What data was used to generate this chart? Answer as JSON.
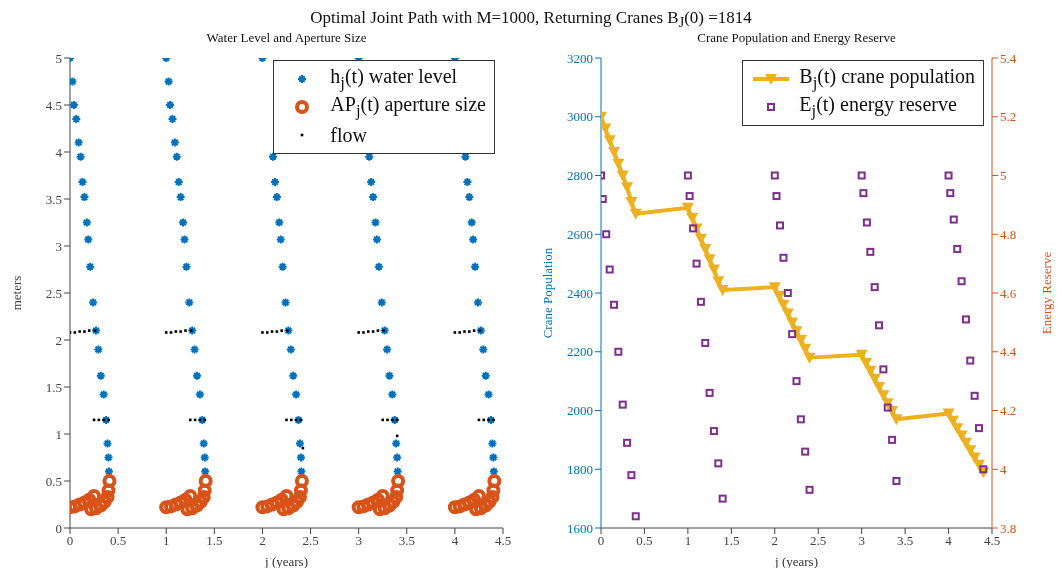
{
  "chart_data": [
    {
      "type": "scatter",
      "title": "Water Level and Aperture Size",
      "annotations": [
        "Optimal Joint Path with M=1000, Returning Cranes B$_{J}$(0) =1814"
      ],
      "xlabel": "j (years)",
      "ylabel": "meters",
      "xlim": [
        0,
        4.5
      ],
      "xticks": [
        0,
        0.5,
        1,
        1.5,
        2,
        2.5,
        3,
        3.5,
        4,
        4.5
      ],
      "ylim": [
        0,
        5
      ],
      "yticks": [
        0,
        0.5,
        1,
        1.5,
        2,
        2.5,
        3,
        3.5,
        4,
        4.5,
        5
      ],
      "legend": "top right",
      "series": [
        {
          "name": "h$_{j}$(t) water level",
          "color": "#0072bd",
          "marker": "cross",
          "x": [
            0,
            0.025,
            0.04,
            0.065,
            0.09,
            0.11,
            0.13,
            0.15,
            0.175,
            0.19,
            0.21,
            0.24,
            0.27,
            0.295,
            0.32,
            0.35,
            0.375,
            0.39,
            0.4,
            0.405,
            1,
            1.025,
            1.04,
            1.065,
            1.09,
            1.11,
            1.13,
            1.15,
            1.175,
            1.19,
            1.21,
            1.24,
            1.27,
            1.295,
            1.32,
            1.35,
            1.375,
            1.39,
            1.4,
            1.405,
            2,
            2.025,
            2.04,
            2.065,
            2.09,
            2.11,
            2.13,
            2.15,
            2.175,
            2.19,
            2.21,
            2.24,
            2.27,
            2.295,
            2.32,
            2.35,
            2.375,
            2.39,
            2.4,
            2.405,
            3,
            3.025,
            3.04,
            3.065,
            3.09,
            3.11,
            3.13,
            3.15,
            3.175,
            3.19,
            3.21,
            3.24,
            3.27,
            3.295,
            3.32,
            3.35,
            3.375,
            3.39,
            3.4,
            3.405,
            4,
            4.025,
            4.04,
            4.065,
            4.09,
            4.11,
            4.13,
            4.15,
            4.175,
            4.19,
            4.21,
            4.24,
            4.27,
            4.295,
            4.32,
            4.35,
            4.375,
            4.39,
            4.4,
            4.405
          ],
          "values": [
            5,
            4.75,
            4.5,
            4.35,
            4.1,
            3.95,
            3.68,
            3.52,
            3.25,
            3.07,
            2.78,
            2.4,
            2.1,
            1.9,
            1.62,
            1.42,
            1.15,
            0.9,
            0.75,
            0.6,
            5,
            4.75,
            4.5,
            4.35,
            4.1,
            3.95,
            3.68,
            3.52,
            3.25,
            3.07,
            2.78,
            2.4,
            2.1,
            1.9,
            1.62,
            1.42,
            1.15,
            0.9,
            0.75,
            0.6,
            5,
            null,
            null,
            null,
            null,
            3.95,
            3.68,
            3.52,
            3.25,
            3.07,
            2.78,
            2.4,
            2.1,
            1.9,
            1.62,
            1.42,
            1.15,
            0.9,
            0.75,
            0.6,
            5,
            null,
            null,
            null,
            null,
            3.95,
            3.68,
            3.52,
            3.25,
            3.07,
            2.78,
            2.4,
            2.1,
            1.9,
            1.62,
            1.42,
            1.15,
            0.9,
            0.75,
            0.6,
            5,
            null,
            null,
            null,
            null,
            3.95,
            3.68,
            3.52,
            3.25,
            3.07,
            2.78,
            2.4,
            2.1,
            1.9,
            1.62,
            1.42,
            1.15,
            0.9,
            0.75,
            0.6
          ]
        },
        {
          "name": "AP$_{j}$(t) aperture size",
          "color": "#d95319",
          "marker": "circle",
          "x": [
            0,
            0.05,
            0.1,
            0.15,
            0.2,
            0.25,
            0.22,
            0.27,
            0.32,
            0.36,
            0.39,
            0.4,
            0.41,
            1,
            1.05,
            1.1,
            1.15,
            1.2,
            1.25,
            1.22,
            1.27,
            1.32,
            1.36,
            1.39,
            1.4,
            1.41,
            2,
            2.05,
            2.1,
            2.15,
            2.2,
            2.25,
            2.22,
            2.27,
            2.32,
            2.36,
            2.39,
            2.4,
            2.41,
            3,
            3.05,
            3.1,
            3.15,
            3.2,
            3.25,
            3.22,
            3.27,
            3.32,
            3.36,
            3.39,
            3.4,
            3.41,
            4,
            4.05,
            4.1,
            4.15,
            4.2,
            4.25,
            4.22,
            4.27,
            4.32,
            4.36,
            4.39,
            4.4,
            4.41
          ],
          "values": [
            0.22,
            0.23,
            0.25,
            0.27,
            0.3,
            0.34,
            0.2,
            0.21,
            0.24,
            0.28,
            0.33,
            0.4,
            0.5,
            0.22,
            0.23,
            0.25,
            0.27,
            0.3,
            0.34,
            0.2,
            0.21,
            0.24,
            0.28,
            0.33,
            0.4,
            0.5,
            0.22,
            0.23,
            0.25,
            0.27,
            0.3,
            0.34,
            0.2,
            0.21,
            0.24,
            0.28,
            0.33,
            0.4,
            0.5,
            0.22,
            0.23,
            0.25,
            0.27,
            0.3,
            0.34,
            0.2,
            0.21,
            0.24,
            0.28,
            0.33,
            0.4,
            0.5,
            0.22,
            0.23,
            0.25,
            0.27,
            0.3,
            0.34,
            0.2,
            0.21,
            0.24,
            0.28,
            0.33,
            0.4,
            0.5
          ]
        },
        {
          "name": "flow",
          "color": "#000000",
          "marker": "square",
          "x": [
            0,
            0.05,
            0.1,
            0.15,
            0.2,
            0.26,
            0.25,
            0.3,
            0.35,
            0.4,
            1,
            1.05,
            1.1,
            1.15,
            1.2,
            1.26,
            1.25,
            1.3,
            1.35,
            1.4,
            2,
            2.05,
            2.1,
            2.15,
            2.2,
            2.26,
            2.25,
            2.3,
            2.35,
            2.4,
            2.42,
            3,
            3.05,
            3.1,
            3.15,
            3.2,
            3.26,
            3.25,
            3.3,
            3.35,
            3.4,
            3.4,
            4,
            4.05,
            4.1,
            4.15,
            4.2,
            4.26,
            4.25,
            4.3,
            4.35,
            4.4
          ],
          "values": [
            2.08,
            2.08,
            2.09,
            2.09,
            2.1,
            2.1,
            1.15,
            1.15,
            1.15,
            1.15,
            2.08,
            2.08,
            2.09,
            2.09,
            2.1,
            2.1,
            1.15,
            1.15,
            1.15,
            1.15,
            2.08,
            2.08,
            2.09,
            2.09,
            2.1,
            2.1,
            1.15,
            1.15,
            1.15,
            1.15,
            0.85,
            2.08,
            2.08,
            2.09,
            2.09,
            2.1,
            2.1,
            1.15,
            1.15,
            1.15,
            1.15,
            0.98,
            2.08,
            2.08,
            2.09,
            2.09,
            2.1,
            2.1,
            1.15,
            1.15,
            1.15,
            1.15
          ]
        }
      ]
    },
    {
      "type": "scatter",
      "title": "Crane Population and Energy Reserve",
      "xlabel": "j (years)",
      "ylabel": "Crane Population",
      "y2label": "Energy Reserve",
      "xlim": [
        0,
        4.5
      ],
      "xticks": [
        0,
        0.5,
        1,
        1.5,
        2,
        2.5,
        3,
        3.5,
        4,
        4.5
      ],
      "ylim": [
        1600,
        3200
      ],
      "yticks": [
        1600,
        1800,
        2000,
        2200,
        2400,
        2600,
        2800,
        3000,
        3200
      ],
      "y2lim": [
        3.8,
        5.4
      ],
      "y2ticks": [
        3.8,
        4,
        4.2,
        4.4,
        4.6,
        4.8,
        5,
        5.2,
        5.4
      ],
      "legend": "top right",
      "series": [
        {
          "name": "B$_{j}$(t) crane population",
          "type": "line",
          "line_style": "solid",
          "color": "#edb120",
          "marker": "triangle",
          "x": [
            0,
            0.05,
            0.1,
            0.15,
            0.2,
            0.25,
            0.3,
            0.35,
            0.4,
            1,
            1.05,
            1.1,
            1.15,
            1.2,
            1.25,
            1.3,
            1.35,
            1.4,
            2,
            2.05,
            2.1,
            2.15,
            2.2,
            2.25,
            2.3,
            2.35,
            2.4,
            3,
            3.05,
            3.1,
            3.15,
            3.2,
            3.25,
            3.3,
            3.35,
            3.4,
            4,
            4.05,
            4.1,
            4.15,
            4.2,
            4.25,
            4.3,
            4.35,
            4.4
          ],
          "values": [
            3000,
            2960,
            2920,
            2880,
            2840,
            2800,
            2760,
            2710,
            2670,
            2690,
            2655,
            2620,
            2585,
            2550,
            2515,
            2480,
            2440,
            2410,
            2420,
            2390,
            2360,
            2330,
            2300,
            2270,
            2240,
            2210,
            2180,
            2190,
            2162,
            2135,
            2108,
            2080,
            2052,
            2025,
            1998,
            1970,
            1990,
            1965,
            1940,
            1915,
            1890,
            1865,
            1840,
            1815,
            1790
          ]
        },
        {
          "name": "E$_{j}$(t) energy reserve",
          "axis": "y2",
          "color": "#7e2f8e",
          "marker": "square",
          "x": [
            0,
            0.02,
            0.06,
            0.1,
            0.15,
            0.2,
            0.25,
            0.3,
            0.35,
            0.4,
            1,
            1.02,
            1.06,
            1.1,
            1.15,
            1.2,
            1.25,
            1.3,
            1.35,
            1.4,
            2,
            2.02,
            2.06,
            2.1,
            2.15,
            2.2,
            2.25,
            2.3,
            2.35,
            2.4,
            3,
            3.02,
            3.06,
            3.1,
            3.15,
            3.2,
            3.25,
            3.3,
            3.35,
            3.4,
            4,
            4.02,
            4.06,
            4.1,
            4.15,
            4.2,
            4.25,
            4.3,
            4.35,
            4.4
          ],
          "values": [
            5,
            4.92,
            4.8,
            4.68,
            4.56,
            4.4,
            4.22,
            4.09,
            3.98,
            3.84,
            5,
            4.93,
            4.82,
            4.7,
            4.57,
            4.43,
            4.26,
            4.13,
            4.02,
            3.9,
            5,
            4.93,
            4.83,
            4.72,
            4.6,
            4.46,
            4.3,
            4.17,
            4.06,
            3.93,
            5,
            4.94,
            4.84,
            4.74,
            4.62,
            4.49,
            4.34,
            4.21,
            4.1,
            3.96,
            5,
            4.94,
            4.85,
            4.75,
            4.64,
            4.51,
            4.37,
            4.25,
            4.14,
            4
          ]
        }
      ]
    }
  ]
}
